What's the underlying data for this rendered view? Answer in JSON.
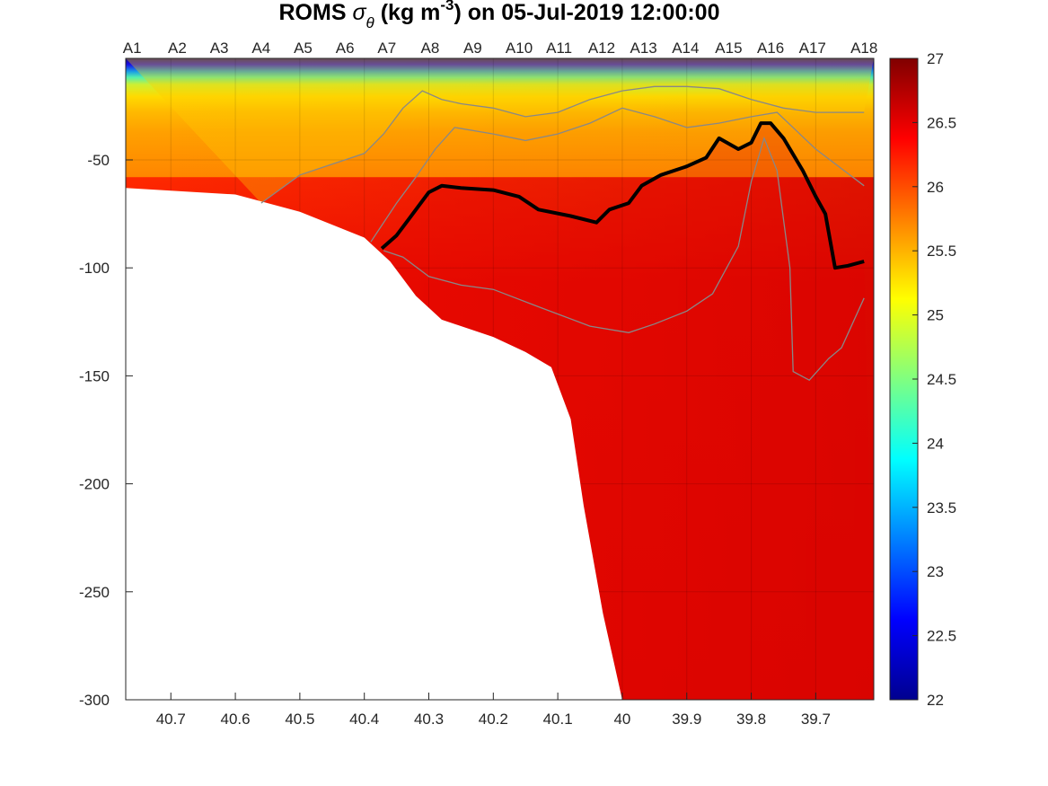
{
  "chart_data": {
    "type": "heatmap",
    "title_prefix": "ROMS ",
    "title_symbol": "σ",
    "title_symbol_sub": "θ",
    "title_unit_pre": " (kg m",
    "title_unit_sup": "-3",
    "title_suffix": ") on 05-Jul-2019 12:00:00",
    "xlim": [
      40.77,
      39.61
    ],
    "ylim": [
      -300,
      -3
    ],
    "x_ticks": [
      40.7,
      40.6,
      40.5,
      40.4,
      40.3,
      40.2,
      40.1,
      40,
      39.9,
      39.8,
      39.7
    ],
    "x_tick_labels": [
      "40.7",
      "40.6",
      "40.5",
      "40.4",
      "40.3",
      "40.2",
      "40.1",
      "40",
      "39.9",
      "39.8",
      "39.7"
    ],
    "y_ticks": [
      -50,
      -100,
      -150,
      -200,
      -250,
      -300
    ],
    "y_tick_labels": [
      "-50",
      "-100",
      "-150",
      "-200",
      "-250",
      "-300"
    ],
    "grid": true,
    "stations": [
      {
        "name": "A1",
        "x": 40.76
      },
      {
        "name": "A2",
        "x": 40.69
      },
      {
        "name": "A3",
        "x": 40.625
      },
      {
        "name": "A4",
        "x": 40.56
      },
      {
        "name": "A5",
        "x": 40.495
      },
      {
        "name": "A6",
        "x": 40.43
      },
      {
        "name": "A7",
        "x": 40.365
      },
      {
        "name": "A8",
        "x": 40.298
      },
      {
        "name": "A9",
        "x": 40.232
      },
      {
        "name": "A10",
        "x": 40.16
      },
      {
        "name": "A11",
        "x": 40.098
      },
      {
        "name": "A12",
        "x": 40.032
      },
      {
        "name": "A13",
        "x": 39.967
      },
      {
        "name": "A14",
        "x": 39.902
      },
      {
        "name": "A15",
        "x": 39.835
      },
      {
        "name": "A16",
        "x": 39.77
      },
      {
        "name": "A17",
        "x": 39.705
      },
      {
        "name": "A18",
        "x": 39.625
      }
    ],
    "colorbar": {
      "range": [
        22,
        27
      ],
      "ticks": [
        22,
        22.5,
        23,
        23.5,
        24,
        24.5,
        25,
        25.5,
        26,
        26.5,
        27
      ],
      "tick_labels": [
        "22",
        "22.5",
        "23",
        "23.5",
        "24",
        "24.5",
        "25",
        "25.5",
        "26",
        "26.5",
        "27"
      ],
      "colormap": "jet"
    },
    "bathymetry": [
      {
        "x": 40.77,
        "depth": -63
      },
      {
        "x": 40.6,
        "depth": -66
      },
      {
        "x": 40.5,
        "depth": -74
      },
      {
        "x": 40.4,
        "depth": -86
      },
      {
        "x": 40.36,
        "depth": -97
      },
      {
        "x": 40.32,
        "depth": -113
      },
      {
        "x": 40.28,
        "depth": -124
      },
      {
        "x": 40.2,
        "depth": -132
      },
      {
        "x": 40.15,
        "depth": -139
      },
      {
        "x": 40.11,
        "depth": -146
      },
      {
        "x": 40.08,
        "depth": -170
      },
      {
        "x": 40.06,
        "depth": -210
      },
      {
        "x": 40.03,
        "depth": -260
      },
      {
        "x": 40.0,
        "depth": -300
      }
    ],
    "contour_26_5": [
      {
        "x": 40.373,
        "depth": -91
      },
      {
        "x": 40.35,
        "depth": -85
      },
      {
        "x": 40.33,
        "depth": -77
      },
      {
        "x": 40.3,
        "depth": -65
      },
      {
        "x": 40.28,
        "depth": -62
      },
      {
        "x": 40.25,
        "depth": -63
      },
      {
        "x": 40.2,
        "depth": -64
      },
      {
        "x": 40.16,
        "depth": -67
      },
      {
        "x": 40.13,
        "depth": -73
      },
      {
        "x": 40.08,
        "depth": -76
      },
      {
        "x": 40.04,
        "depth": -79
      },
      {
        "x": 40.02,
        "depth": -73
      },
      {
        "x": 39.99,
        "depth": -70
      },
      {
        "x": 39.97,
        "depth": -62
      },
      {
        "x": 39.94,
        "depth": -57
      },
      {
        "x": 39.9,
        "depth": -53
      },
      {
        "x": 39.87,
        "depth": -49
      },
      {
        "x": 39.85,
        "depth": -40
      },
      {
        "x": 39.82,
        "depth": -45
      },
      {
        "x": 39.8,
        "depth": -42
      },
      {
        "x": 39.785,
        "depth": -33
      },
      {
        "x": 39.77,
        "depth": -33
      },
      {
        "x": 39.75,
        "depth": -40
      },
      {
        "x": 39.72,
        "depth": -55
      },
      {
        "x": 39.7,
        "depth": -67
      },
      {
        "x": 39.685,
        "depth": -75
      },
      {
        "x": 39.67,
        "depth": -100
      },
      {
        "x": 39.65,
        "depth": -99
      },
      {
        "x": 39.625,
        "depth": -97
      }
    ],
    "gray_contours": [
      [
        {
          "x": 40.56,
          "depth": -70
        },
        {
          "x": 40.5,
          "depth": -57
        },
        {
          "x": 40.45,
          "depth": -52
        },
        {
          "x": 40.4,
          "depth": -47
        },
        {
          "x": 40.37,
          "depth": -38
        },
        {
          "x": 40.34,
          "depth": -26
        },
        {
          "x": 40.31,
          "depth": -18
        },
        {
          "x": 40.28,
          "depth": -22
        },
        {
          "x": 40.25,
          "depth": -24
        },
        {
          "x": 40.2,
          "depth": -26
        },
        {
          "x": 40.15,
          "depth": -30
        },
        {
          "x": 40.1,
          "depth": -28
        },
        {
          "x": 40.05,
          "depth": -22
        },
        {
          "x": 40.0,
          "depth": -18
        },
        {
          "x": 39.95,
          "depth": -16
        },
        {
          "x": 39.9,
          "depth": -16
        },
        {
          "x": 39.85,
          "depth": -17
        },
        {
          "x": 39.8,
          "depth": -22
        },
        {
          "x": 39.75,
          "depth": -26
        },
        {
          "x": 39.7,
          "depth": -28
        },
        {
          "x": 39.625,
          "depth": -28
        }
      ],
      [
        {
          "x": 40.39,
          "depth": -88
        },
        {
          "x": 40.35,
          "depth": -70
        },
        {
          "x": 40.32,
          "depth": -58
        },
        {
          "x": 40.29,
          "depth": -45
        },
        {
          "x": 40.26,
          "depth": -35
        },
        {
          "x": 40.2,
          "depth": -38
        },
        {
          "x": 40.15,
          "depth": -41
        },
        {
          "x": 40.1,
          "depth": -38
        },
        {
          "x": 40.05,
          "depth": -33
        },
        {
          "x": 40.0,
          "depth": -26
        },
        {
          "x": 39.95,
          "depth": -30
        },
        {
          "x": 39.9,
          "depth": -35
        },
        {
          "x": 39.85,
          "depth": -33
        },
        {
          "x": 39.8,
          "depth": -30
        },
        {
          "x": 39.76,
          "depth": -28
        },
        {
          "x": 39.7,
          "depth": -45
        },
        {
          "x": 39.625,
          "depth": -62
        }
      ],
      [
        {
          "x": 40.37,
          "depth": -92
        },
        {
          "x": 40.34,
          "depth": -95
        },
        {
          "x": 40.3,
          "depth": -104
        },
        {
          "x": 40.25,
          "depth": -108
        },
        {
          "x": 40.2,
          "depth": -110
        },
        {
          "x": 40.13,
          "depth": -118
        },
        {
          "x": 40.05,
          "depth": -127
        },
        {
          "x": 39.99,
          "depth": -130
        },
        {
          "x": 39.95,
          "depth": -126
        },
        {
          "x": 39.9,
          "depth": -120
        },
        {
          "x": 39.86,
          "depth": -112
        },
        {
          "x": 39.82,
          "depth": -90
        },
        {
          "x": 39.8,
          "depth": -60
        },
        {
          "x": 39.78,
          "depth": -40
        },
        {
          "x": 39.76,
          "depth": -55
        },
        {
          "x": 39.74,
          "depth": -100
        },
        {
          "x": 39.735,
          "depth": -148
        },
        {
          "x": 39.71,
          "depth": -152
        },
        {
          "x": 39.68,
          "depth": -142
        },
        {
          "x": 39.66,
          "depth": -137
        },
        {
          "x": 39.625,
          "depth": -114
        }
      ]
    ]
  }
}
